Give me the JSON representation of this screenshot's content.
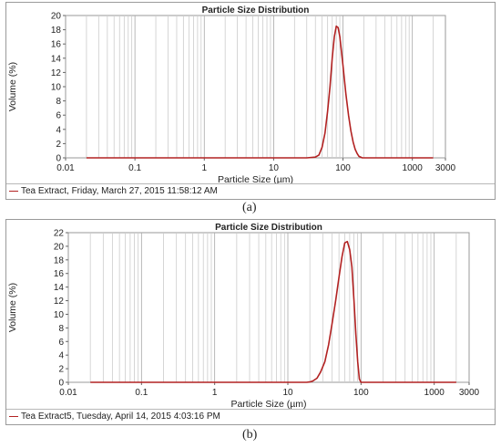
{
  "chart_data": [
    {
      "type": "line",
      "title": "Particle Size Distribution",
      "xlabel": "Particle Size (µm)",
      "ylabel": "Volume (%)",
      "xscale": "log",
      "xlim": [
        0.01,
        3000
      ],
      "ylim": [
        0,
        20
      ],
      "xticks": [
        "0.01",
        "0.1",
        "1",
        "10",
        "100",
        "1000",
        "3000"
      ],
      "yticks": [
        "0",
        "2",
        "4",
        "6",
        "8",
        "10",
        "12",
        "14",
        "16",
        "18",
        "20"
      ],
      "grid": true,
      "legend_position": "bottom",
      "series": [
        {
          "name": "Tea Extract, Friday, March 27, 2015 11:58:12 AM",
          "color": "#b22222",
          "x": [
            0.02,
            30,
            40,
            45,
            50,
            55,
            60,
            65,
            70,
            75,
            80,
            85,
            90,
            100,
            110,
            120,
            130,
            140,
            150,
            160,
            170,
            190,
            2000
          ],
          "y": [
            0,
            0,
            0.1,
            0.4,
            1.5,
            3.5,
            6.5,
            10,
            14,
            17,
            18.5,
            18.3,
            17,
            13,
            9,
            6,
            3.8,
            2.2,
            1.2,
            0.6,
            0.2,
            0,
            0
          ]
        }
      ]
    },
    {
      "type": "line",
      "title": "Particle Size Distribution",
      "xlabel": "Particle Size (µm)",
      "ylabel": "Volume (%)",
      "xscale": "log",
      "xlim": [
        0.01,
        3000
      ],
      "ylim": [
        0,
        22
      ],
      "xticks": [
        "0.01",
        "0.1",
        "1",
        "10",
        "100",
        "1000",
        "3000"
      ],
      "yticks": [
        "0",
        "2",
        "4",
        "6",
        "8",
        "10",
        "12",
        "14",
        "16",
        "18",
        "20",
        "22"
      ],
      "grid": true,
      "legend_position": "bottom",
      "series": [
        {
          "name": "Tea Extract5, Tuesday, April 14, 2015 4:03:16 PM",
          "color": "#b22222",
          "x": [
            0.02,
            18,
            20,
            22,
            25,
            28,
            32,
            36,
            40,
            45,
            50,
            55,
            60,
            65,
            70,
            75,
            80,
            85,
            90,
            95,
            100,
            2000
          ],
          "y": [
            0,
            0,
            0.05,
            0.2,
            0.6,
            1.5,
            3,
            5.5,
            8.5,
            12,
            15.5,
            18.5,
            20.5,
            20.7,
            19.5,
            17,
            12,
            7,
            3,
            0.5,
            0,
            0
          ]
        }
      ]
    }
  ],
  "captions": [
    "(a)",
    "(b)"
  ]
}
